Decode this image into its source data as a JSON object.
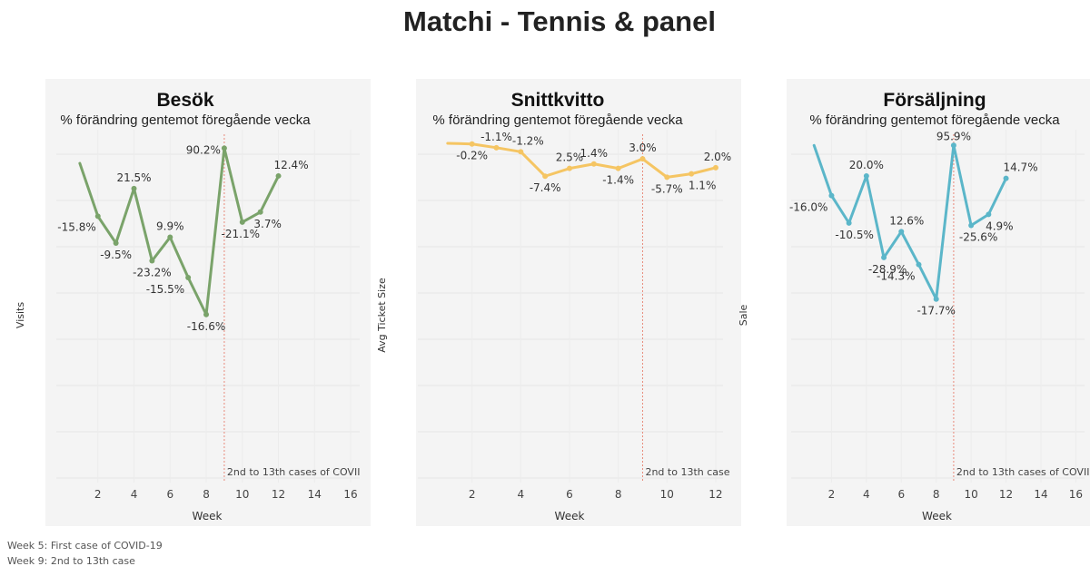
{
  "page": {
    "title": "Matchi - Tennis & panel",
    "footnotes": [
      "Week 5: First case of COVID-19",
      "Week 9: 2nd to 13th case"
    ]
  },
  "chart_data": [
    {
      "type": "line",
      "title": "Besök",
      "subtitle": "% förändring gentemot föregående vecka",
      "xlabel": "Week",
      "ylabel": "Visits",
      "color": "#7aa36a",
      "xlim": [
        0,
        16.5
      ],
      "xticks": [
        2,
        4,
        6,
        8,
        10,
        12,
        14,
        16
      ],
      "x": [
        1,
        2,
        3,
        4,
        5,
        6,
        7,
        8,
        9,
        10,
        11,
        12
      ],
      "y": [
        40,
        33.7,
        30.5,
        37,
        28.4,
        31.2,
        26.4,
        22,
        41.8,
        33.0,
        34.2,
        38.5
      ],
      "ylim": [
        2,
        44
      ],
      "point_labels": [
        "",
        "-15.8%",
        "-9.5%",
        "21.5%",
        "-23.2%",
        "9.9%",
        "-15.5%",
        "-16.6%",
        "90.2%",
        "-21.1%",
        "3.7%",
        "12.4%"
      ],
      "reference_line": {
        "x": 9,
        "label": "2nd to 13th cases of COVII",
        "color": "#e88a7a"
      }
    },
    {
      "type": "line",
      "title": "Snittkvitto",
      "subtitle": "% förändring gentemot föregående vecka",
      "xlabel": "Week",
      "ylabel": "Avg Ticket Size",
      "color": "#f5c563",
      "xlim": [
        0,
        12.3
      ],
      "xticks": [
        2,
        4,
        6,
        8,
        10,
        12
      ],
      "x": [
        1,
        2,
        3,
        4,
        5,
        6,
        7,
        8,
        9,
        10,
        11,
        12
      ],
      "y": [
        100,
        99.8,
        98.7,
        97.5,
        90.3,
        92.6,
        93.9,
        92.6,
        95.4,
        90.0,
        91.0,
        92.8
      ],
      "ylim": [
        0,
        104
      ],
      "point_labels": [
        "",
        "-0.2%",
        "-1.1%",
        "-1.2%",
        "-7.4%",
        "2.5%",
        "1.4%",
        "-1.4%",
        "3.0%",
        "-5.7%",
        "1.1%",
        "2.0%"
      ],
      "reference_line": {
        "x": 9,
        "label": "2nd to 13th case",
        "color": "#e88a7a"
      }
    },
    {
      "type": "line",
      "title": "Försäljning",
      "subtitle": "% förändring gentemot föregående vecka",
      "xlabel": "Week",
      "ylabel": "Sale",
      "color": "#5bb6c9",
      "xlim": [
        0,
        16.5
      ],
      "xticks": [
        2,
        4,
        6,
        8,
        10,
        12,
        14,
        16
      ],
      "x": [
        1,
        2,
        3,
        4,
        5,
        6,
        7,
        8,
        9,
        10,
        11,
        12
      ],
      "y": [
        40,
        33.6,
        30.1,
        36.1,
        25.7,
        29.0,
        24.8,
        20.4,
        40.0,
        29.8,
        31.2,
        35.8
      ],
      "ylim": [
        -3,
        42
      ],
      "point_labels": [
        "",
        "-16.0%",
        "-10.5%",
        "20.0%",
        "-28.9%",
        "12.6%",
        "-14.3%",
        "-17.7%",
        "95.9%",
        "-25.6%",
        "4.9%",
        "14.7%"
      ],
      "reference_line": {
        "x": 9,
        "label": "2nd to 13th cases of COVII",
        "color": "#e88a7a"
      }
    }
  ]
}
